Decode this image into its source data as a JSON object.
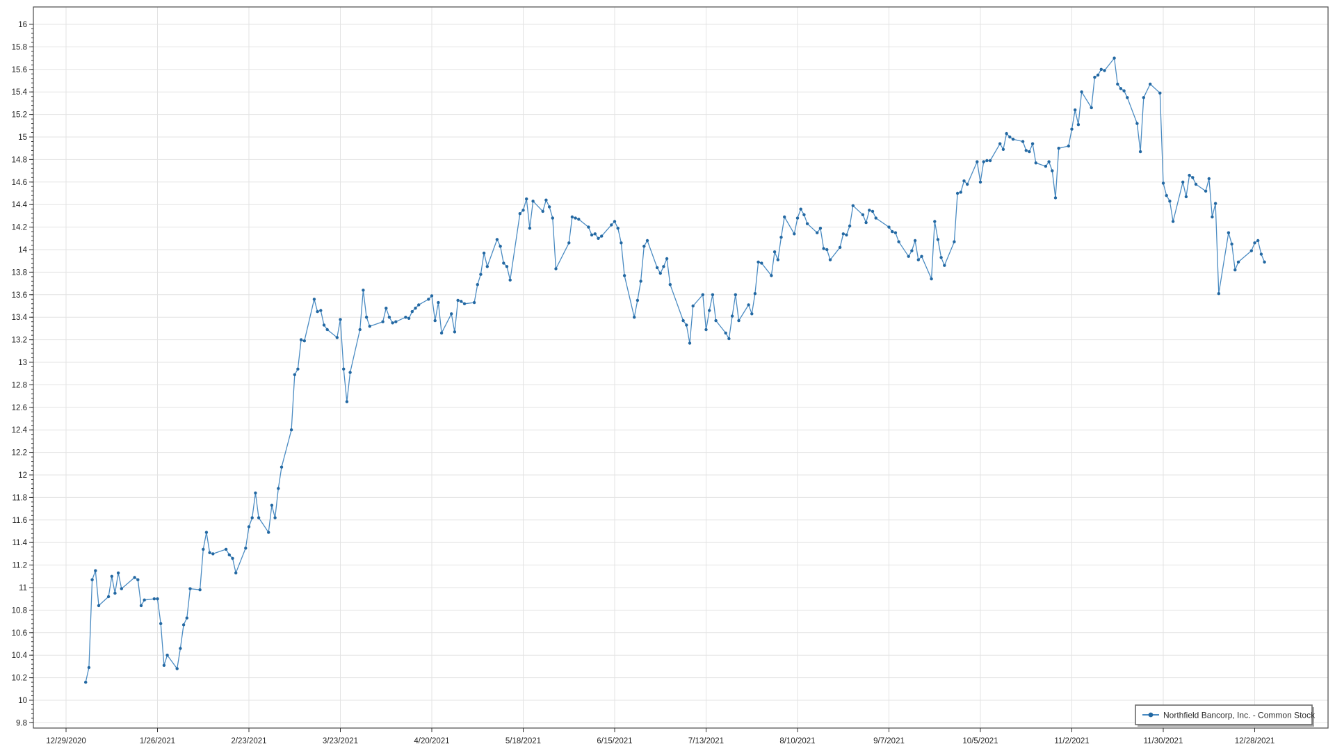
{
  "chart": {
    "legend_label": "Northfield Bancorp, Inc. - Common Stock",
    "colors": {
      "line": "#4a8bc2",
      "marker": "#2368a2",
      "grid": "#e3e3e3",
      "border": "#4a4a4a",
      "tick": "#333333",
      "label": "#222222",
      "legend_border": "#6b6b6b",
      "legend_shadow": "#a6a6a6",
      "background": "#ffffff"
    }
  },
  "chart_data": {
    "type": "line",
    "title": "",
    "xlabel": "",
    "ylabel": "",
    "grid": true,
    "legend_position": "bottom-right",
    "ylim": [
      9.8,
      16
    ],
    "ytick_step": 0.2,
    "ytick_labels": [
      "9.8",
      "10",
      "10.2",
      "10.4",
      "10.6",
      "10.8",
      "11",
      "11.2",
      "11.4",
      "11.6",
      "11.8",
      "12",
      "12.2",
      "12.4",
      "12.6",
      "12.8",
      "13",
      "13.2",
      "13.4",
      "13.6",
      "13.8",
      "14",
      "14.2",
      "14.4",
      "14.6",
      "14.8",
      "15",
      "15.2",
      "15.4",
      "15.6",
      "15.8",
      "16"
    ],
    "xtick_labels": [
      "12/29/2020",
      "1/26/2021",
      "2/23/2021",
      "3/23/2021",
      "4/20/2021",
      "5/18/2021",
      "6/15/2021",
      "7/13/2021",
      "8/10/2021",
      "9/7/2021",
      "10/5/2021",
      "11/2/2021",
      "11/30/2021",
      "12/28/2021"
    ],
    "xtick_dates": [
      "2020-12-29",
      "2021-01-26",
      "2021-02-23",
      "2021-03-23",
      "2021-04-20",
      "2021-05-18",
      "2021-06-15",
      "2021-07-13",
      "2021-08-10",
      "2021-09-07",
      "2021-10-05",
      "2021-11-02",
      "2021-11-30",
      "2021-12-28"
    ],
    "series": [
      {
        "name": "Northfield Bancorp, Inc. - Common Stock",
        "dates": [
          "2021-01-04",
          "2021-01-05",
          "2021-01-06",
          "2021-01-07",
          "2021-01-08",
          "2021-01-11",
          "2021-01-12",
          "2021-01-13",
          "2021-01-14",
          "2021-01-15",
          "2021-01-19",
          "2021-01-20",
          "2021-01-21",
          "2021-01-22",
          "2021-01-25",
          "2021-01-26",
          "2021-01-27",
          "2021-01-28",
          "2021-01-29",
          "2021-02-01",
          "2021-02-02",
          "2021-02-03",
          "2021-02-04",
          "2021-02-05",
          "2021-02-08",
          "2021-02-09",
          "2021-02-10",
          "2021-02-11",
          "2021-02-12",
          "2021-02-16",
          "2021-02-17",
          "2021-02-18",
          "2021-02-19",
          "2021-02-22",
          "2021-02-23",
          "2021-02-24",
          "2021-02-25",
          "2021-02-26",
          "2021-03-01",
          "2021-03-02",
          "2021-03-03",
          "2021-03-04",
          "2021-03-05",
          "2021-03-08",
          "2021-03-09",
          "2021-03-10",
          "2021-03-11",
          "2021-03-12",
          "2021-03-15",
          "2021-03-16",
          "2021-03-17",
          "2021-03-18",
          "2021-03-19",
          "2021-03-22",
          "2021-03-23",
          "2021-03-24",
          "2021-03-25",
          "2021-03-26",
          "2021-03-29",
          "2021-03-30",
          "2021-03-31",
          "2021-04-01",
          "2021-04-05",
          "2021-04-06",
          "2021-04-07",
          "2021-04-08",
          "2021-04-09",
          "2021-04-12",
          "2021-04-13",
          "2021-04-14",
          "2021-04-15",
          "2021-04-16",
          "2021-04-19",
          "2021-04-20",
          "2021-04-21",
          "2021-04-22",
          "2021-04-23",
          "2021-04-26",
          "2021-04-27",
          "2021-04-28",
          "2021-04-29",
          "2021-04-30",
          "2021-05-03",
          "2021-05-04",
          "2021-05-05",
          "2021-05-06",
          "2021-05-07",
          "2021-05-10",
          "2021-05-11",
          "2021-05-12",
          "2021-05-13",
          "2021-05-14",
          "2021-05-17",
          "2021-05-18",
          "2021-05-19",
          "2021-05-20",
          "2021-05-21",
          "2021-05-24",
          "2021-05-25",
          "2021-05-26",
          "2021-05-27",
          "2021-05-28",
          "2021-06-01",
          "2021-06-02",
          "2021-06-03",
          "2021-06-04",
          "2021-06-07",
          "2021-06-08",
          "2021-06-09",
          "2021-06-10",
          "2021-06-11",
          "2021-06-14",
          "2021-06-15",
          "2021-06-16",
          "2021-06-17",
          "2021-06-18",
          "2021-06-21",
          "2021-06-22",
          "2021-06-23",
          "2021-06-24",
          "2021-06-25",
          "2021-06-28",
          "2021-06-29",
          "2021-06-30",
          "2021-07-01",
          "2021-07-02",
          "2021-07-06",
          "2021-07-07",
          "2021-07-08",
          "2021-07-09",
          "2021-07-12",
          "2021-07-13",
          "2021-07-14",
          "2021-07-15",
          "2021-07-16",
          "2021-07-19",
          "2021-07-20",
          "2021-07-21",
          "2021-07-22",
          "2021-07-23",
          "2021-07-26",
          "2021-07-27",
          "2021-07-28",
          "2021-07-29",
          "2021-07-30",
          "2021-08-02",
          "2021-08-03",
          "2021-08-04",
          "2021-08-05",
          "2021-08-06",
          "2021-08-09",
          "2021-08-10",
          "2021-08-11",
          "2021-08-12",
          "2021-08-13",
          "2021-08-16",
          "2021-08-17",
          "2021-08-18",
          "2021-08-19",
          "2021-08-20",
          "2021-08-23",
          "2021-08-24",
          "2021-08-25",
          "2021-08-26",
          "2021-08-27",
          "2021-08-30",
          "2021-08-31",
          "2021-09-01",
          "2021-09-02",
          "2021-09-03",
          "2021-09-07",
          "2021-09-08",
          "2021-09-09",
          "2021-09-10",
          "2021-09-13",
          "2021-09-14",
          "2021-09-15",
          "2021-09-16",
          "2021-09-17",
          "2021-09-20",
          "2021-09-21",
          "2021-09-22",
          "2021-09-23",
          "2021-09-24",
          "2021-09-27",
          "2021-09-28",
          "2021-09-29",
          "2021-09-30",
          "2021-10-01",
          "2021-10-04",
          "2021-10-05",
          "2021-10-06",
          "2021-10-07",
          "2021-10-08",
          "2021-10-11",
          "2021-10-12",
          "2021-10-13",
          "2021-10-14",
          "2021-10-15",
          "2021-10-18",
          "2021-10-19",
          "2021-10-20",
          "2021-10-21",
          "2021-10-22",
          "2021-10-25",
          "2021-10-26",
          "2021-10-27",
          "2021-10-28",
          "2021-10-29",
          "2021-11-01",
          "2021-11-02",
          "2021-11-03",
          "2021-11-04",
          "2021-11-05",
          "2021-11-08",
          "2021-11-09",
          "2021-11-10",
          "2021-11-11",
          "2021-11-12",
          "2021-11-15",
          "2021-11-16",
          "2021-11-17",
          "2021-11-18",
          "2021-11-19",
          "2021-11-22",
          "2021-11-23",
          "2021-11-24",
          "2021-11-26",
          "2021-11-29",
          "2021-11-30",
          "2021-12-01",
          "2021-12-02",
          "2021-12-03",
          "2021-12-06",
          "2021-12-07",
          "2021-12-08",
          "2021-12-09",
          "2021-12-10",
          "2021-12-13",
          "2021-12-14",
          "2021-12-15",
          "2021-12-16",
          "2021-12-17",
          "2021-12-20",
          "2021-12-21",
          "2021-12-22",
          "2021-12-23",
          "2021-12-27",
          "2021-12-28",
          "2021-12-29",
          "2021-12-30",
          "2021-12-31"
        ],
        "values": [
          10.16,
          10.29,
          11.07,
          11.15,
          10.84,
          10.92,
          11.1,
          10.95,
          11.13,
          10.99,
          11.09,
          11.07,
          10.84,
          10.89,
          10.9,
          10.9,
          10.68,
          10.31,
          10.4,
          10.28,
          10.46,
          10.67,
          10.73,
          10.99,
          10.98,
          11.34,
          11.49,
          11.31,
          11.3,
          11.34,
          11.29,
          11.26,
          11.13,
          11.35,
          11.54,
          11.62,
          11.84,
          11.62,
          11.49,
          11.73,
          11.62,
          11.88,
          12.07,
          12.4,
          12.89,
          12.94,
          13.2,
          13.19,
          13.56,
          13.45,
          13.46,
          13.33,
          13.29,
          13.22,
          13.38,
          12.94,
          12.65,
          12.91,
          13.29,
          13.64,
          13.4,
          13.32,
          13.36,
          13.48,
          13.4,
          13.35,
          13.36,
          13.4,
          13.39,
          13.45,
          13.48,
          13.51,
          13.56,
          13.59,
          13.37,
          13.53,
          13.26,
          13.43,
          13.27,
          13.55,
          13.54,
          13.52,
          13.53,
          13.69,
          13.78,
          13.97,
          13.85,
          14.09,
          14.03,
          13.88,
          13.85,
          13.73,
          14.32,
          14.35,
          14.45,
          14.19,
          14.43,
          14.34,
          14.44,
          14.38,
          14.28,
          13.83,
          14.06,
          14.29,
          14.28,
          14.27,
          14.2,
          14.13,
          14.14,
          14.1,
          14.12,
          14.22,
          14.25,
          14.19,
          14.06,
          13.77,
          13.4,
          13.55,
          13.72,
          14.03,
          14.08,
          13.84,
          13.79,
          13.85,
          13.92,
          13.69,
          13.37,
          13.33,
          13.17,
          13.5,
          13.6,
          13.29,
          13.46,
          13.6,
          13.37,
          13.26,
          13.21,
          13.41,
          13.6,
          13.37,
          13.51,
          13.43,
          13.61,
          13.89,
          13.88,
          13.77,
          13.98,
          13.91,
          14.11,
          14.29,
          14.14,
          14.28,
          14.36,
          14.31,
          14.23,
          14.15,
          14.19,
          14.01,
          14.0,
          13.91,
          14.02,
          14.14,
          14.13,
          14.21,
          14.39,
          14.31,
          14.24,
          14.35,
          14.34,
          14.28,
          14.2,
          14.16,
          14.15,
          14.07,
          13.94,
          13.99,
          14.08,
          13.91,
          13.94,
          13.74,
          14.25,
          14.09,
          13.93,
          13.86,
          14.07,
          14.5,
          14.51,
          14.61,
          14.58,
          14.78,
          14.6,
          14.78,
          14.79,
          14.79,
          14.94,
          14.89,
          15.03,
          15.0,
          14.98,
          14.96,
          14.88,
          14.87,
          14.94,
          14.77,
          14.74,
          14.78,
          14.7,
          14.46,
          14.9,
          14.92,
          15.07,
          15.24,
          15.11,
          15.4,
          15.26,
          15.53,
          15.55,
          15.6,
          15.59,
          15.7,
          15.47,
          15.43,
          15.41,
          15.35,
          15.12,
          14.87,
          15.35,
          15.47,
          15.39,
          14.59,
          14.48,
          14.43,
          14.25,
          14.6,
          14.47,
          14.66,
          14.64,
          14.58,
          14.52,
          14.63,
          14.29,
          14.41,
          13.61,
          14.15,
          14.05,
          13.82,
          13.89,
          13.99,
          14.06,
          14.08,
          13.96,
          13.89
        ]
      }
    ]
  }
}
